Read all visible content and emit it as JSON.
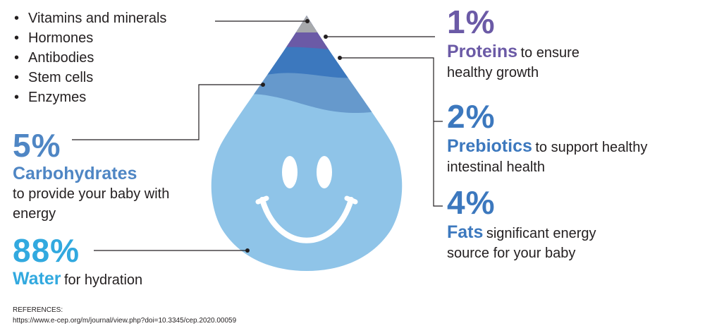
{
  "bullets": [
    "Vitamins and minerals",
    "Hormones",
    "Antibodies",
    "Stem cells",
    "Enzymes"
  ],
  "proteins": {
    "percent": "1%",
    "name": "Proteins",
    "desc_1": "to ensure",
    "desc_2": "healthy growth"
  },
  "prebiotics": {
    "percent": "2%",
    "name": "Prebiotics",
    "desc_1": "to support healthy",
    "desc_2": "intestinal health"
  },
  "fats": {
    "percent": "4%",
    "name": "Fats",
    "desc_1": "significant energy",
    "desc_2": "source for your baby"
  },
  "carbohydrates": {
    "percent": "5%",
    "name": "Carbohydrates",
    "desc_1": "to provide your baby with",
    "desc_2": "energy"
  },
  "water": {
    "percent": "88%",
    "name": "Water",
    "desc_1": "for hydration"
  },
  "references": {
    "heading": "REFERENCES:",
    "url": "https://www.e-cep.org/m/journal/view.php?doi=10.3345/cep.2020.00059"
  },
  "colors": {
    "other": "#a7a9ac",
    "proteins": "#6b5aa6",
    "prebiotics": "#3c78be",
    "fats": "#6699cc",
    "water": "#8fc4e8",
    "face": "#ffffff"
  }
}
